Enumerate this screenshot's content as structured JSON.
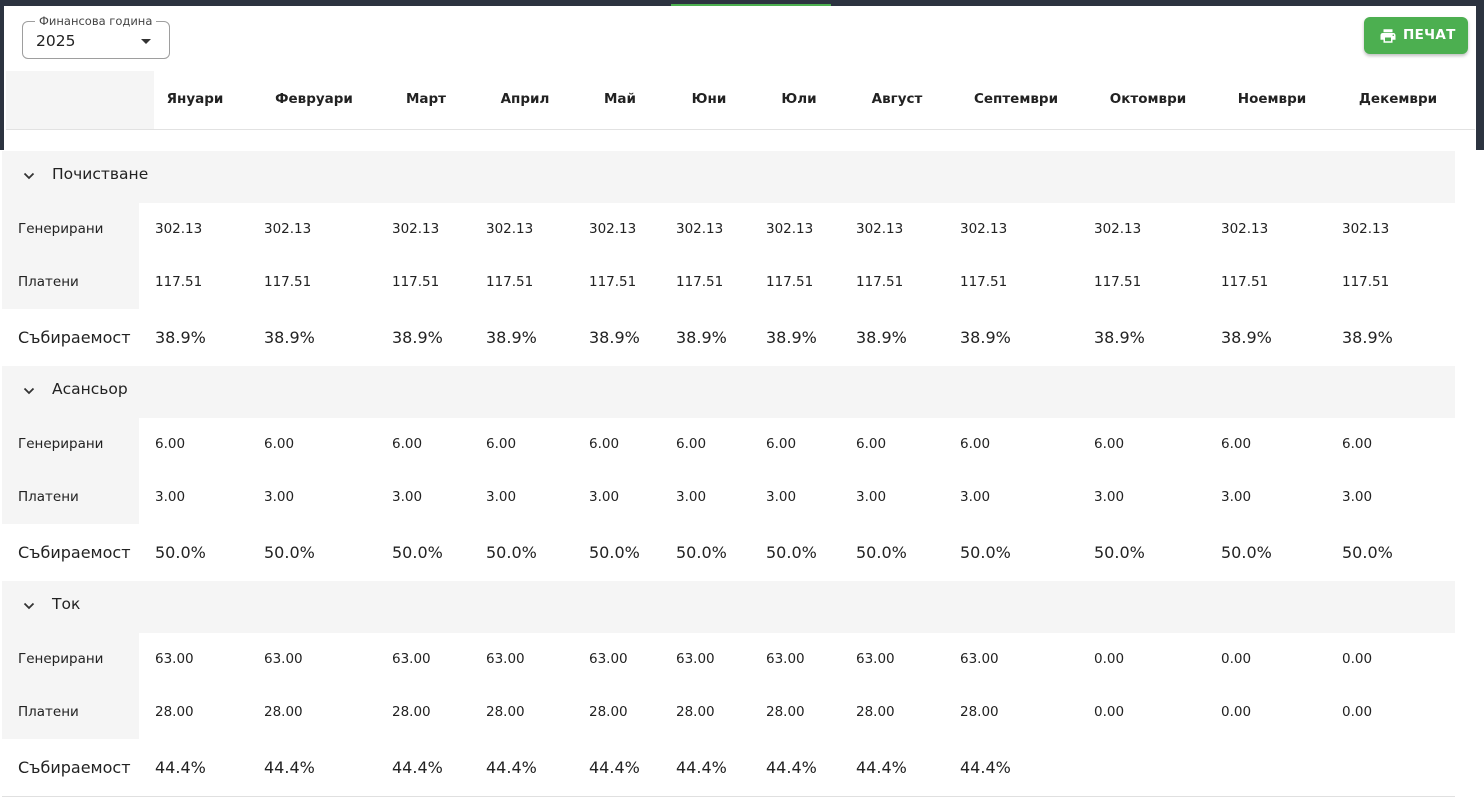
{
  "filters": {
    "year_label": "Финансова година",
    "year_value": "2025"
  },
  "toolbar": {
    "print_label": "ПЕЧАТ"
  },
  "months": [
    "Януари",
    "Февруари",
    "Март",
    "Април",
    "Май",
    "Юни",
    "Юли",
    "Август",
    "Септември",
    "Октомври",
    "Ноември",
    "Декември"
  ],
  "row_labels": {
    "generated": "Генерирани",
    "paid": "Платени",
    "collection": "Събираемост"
  },
  "groups": [
    {
      "name": "Почистване",
      "generated": [
        "302.13",
        "302.13",
        "302.13",
        "302.13",
        "302.13",
        "302.13",
        "302.13",
        "302.13",
        "302.13",
        "302.13",
        "302.13",
        "302.13"
      ],
      "paid": [
        "117.51",
        "117.51",
        "117.51",
        "117.51",
        "117.51",
        "117.51",
        "117.51",
        "117.51",
        "117.51",
        "117.51",
        "117.51",
        "117.51"
      ],
      "collection": [
        "38.9%",
        "38.9%",
        "38.9%",
        "38.9%",
        "38.9%",
        "38.9%",
        "38.9%",
        "38.9%",
        "38.9%",
        "38.9%",
        "38.9%",
        "38.9%"
      ]
    },
    {
      "name": "Асансьор",
      "generated": [
        "6.00",
        "6.00",
        "6.00",
        "6.00",
        "6.00",
        "6.00",
        "6.00",
        "6.00",
        "6.00",
        "6.00",
        "6.00",
        "6.00"
      ],
      "paid": [
        "3.00",
        "3.00",
        "3.00",
        "3.00",
        "3.00",
        "3.00",
        "3.00",
        "3.00",
        "3.00",
        "3.00",
        "3.00",
        "3.00"
      ],
      "collection": [
        "50.0%",
        "50.0%",
        "50.0%",
        "50.0%",
        "50.0%",
        "50.0%",
        "50.0%",
        "50.0%",
        "50.0%",
        "50.0%",
        "50.0%",
        "50.0%"
      ]
    },
    {
      "name": "Ток",
      "generated": [
        "63.00",
        "63.00",
        "63.00",
        "63.00",
        "63.00",
        "63.00",
        "63.00",
        "63.00",
        "63.00",
        "0.00",
        "0.00",
        "0.00"
      ],
      "paid": [
        "28.00",
        "28.00",
        "28.00",
        "28.00",
        "28.00",
        "28.00",
        "28.00",
        "28.00",
        "28.00",
        "0.00",
        "0.00",
        "0.00"
      ],
      "collection": [
        "44.4%",
        "44.4%",
        "44.4%",
        "44.4%",
        "44.4%",
        "44.4%",
        "44.4%",
        "44.4%",
        "44.4%",
        "",
        "",
        ""
      ]
    }
  ],
  "colors": {
    "accent": "#4caf50",
    "frame": "#2c3340",
    "label_bg": "#f5f5f5"
  }
}
